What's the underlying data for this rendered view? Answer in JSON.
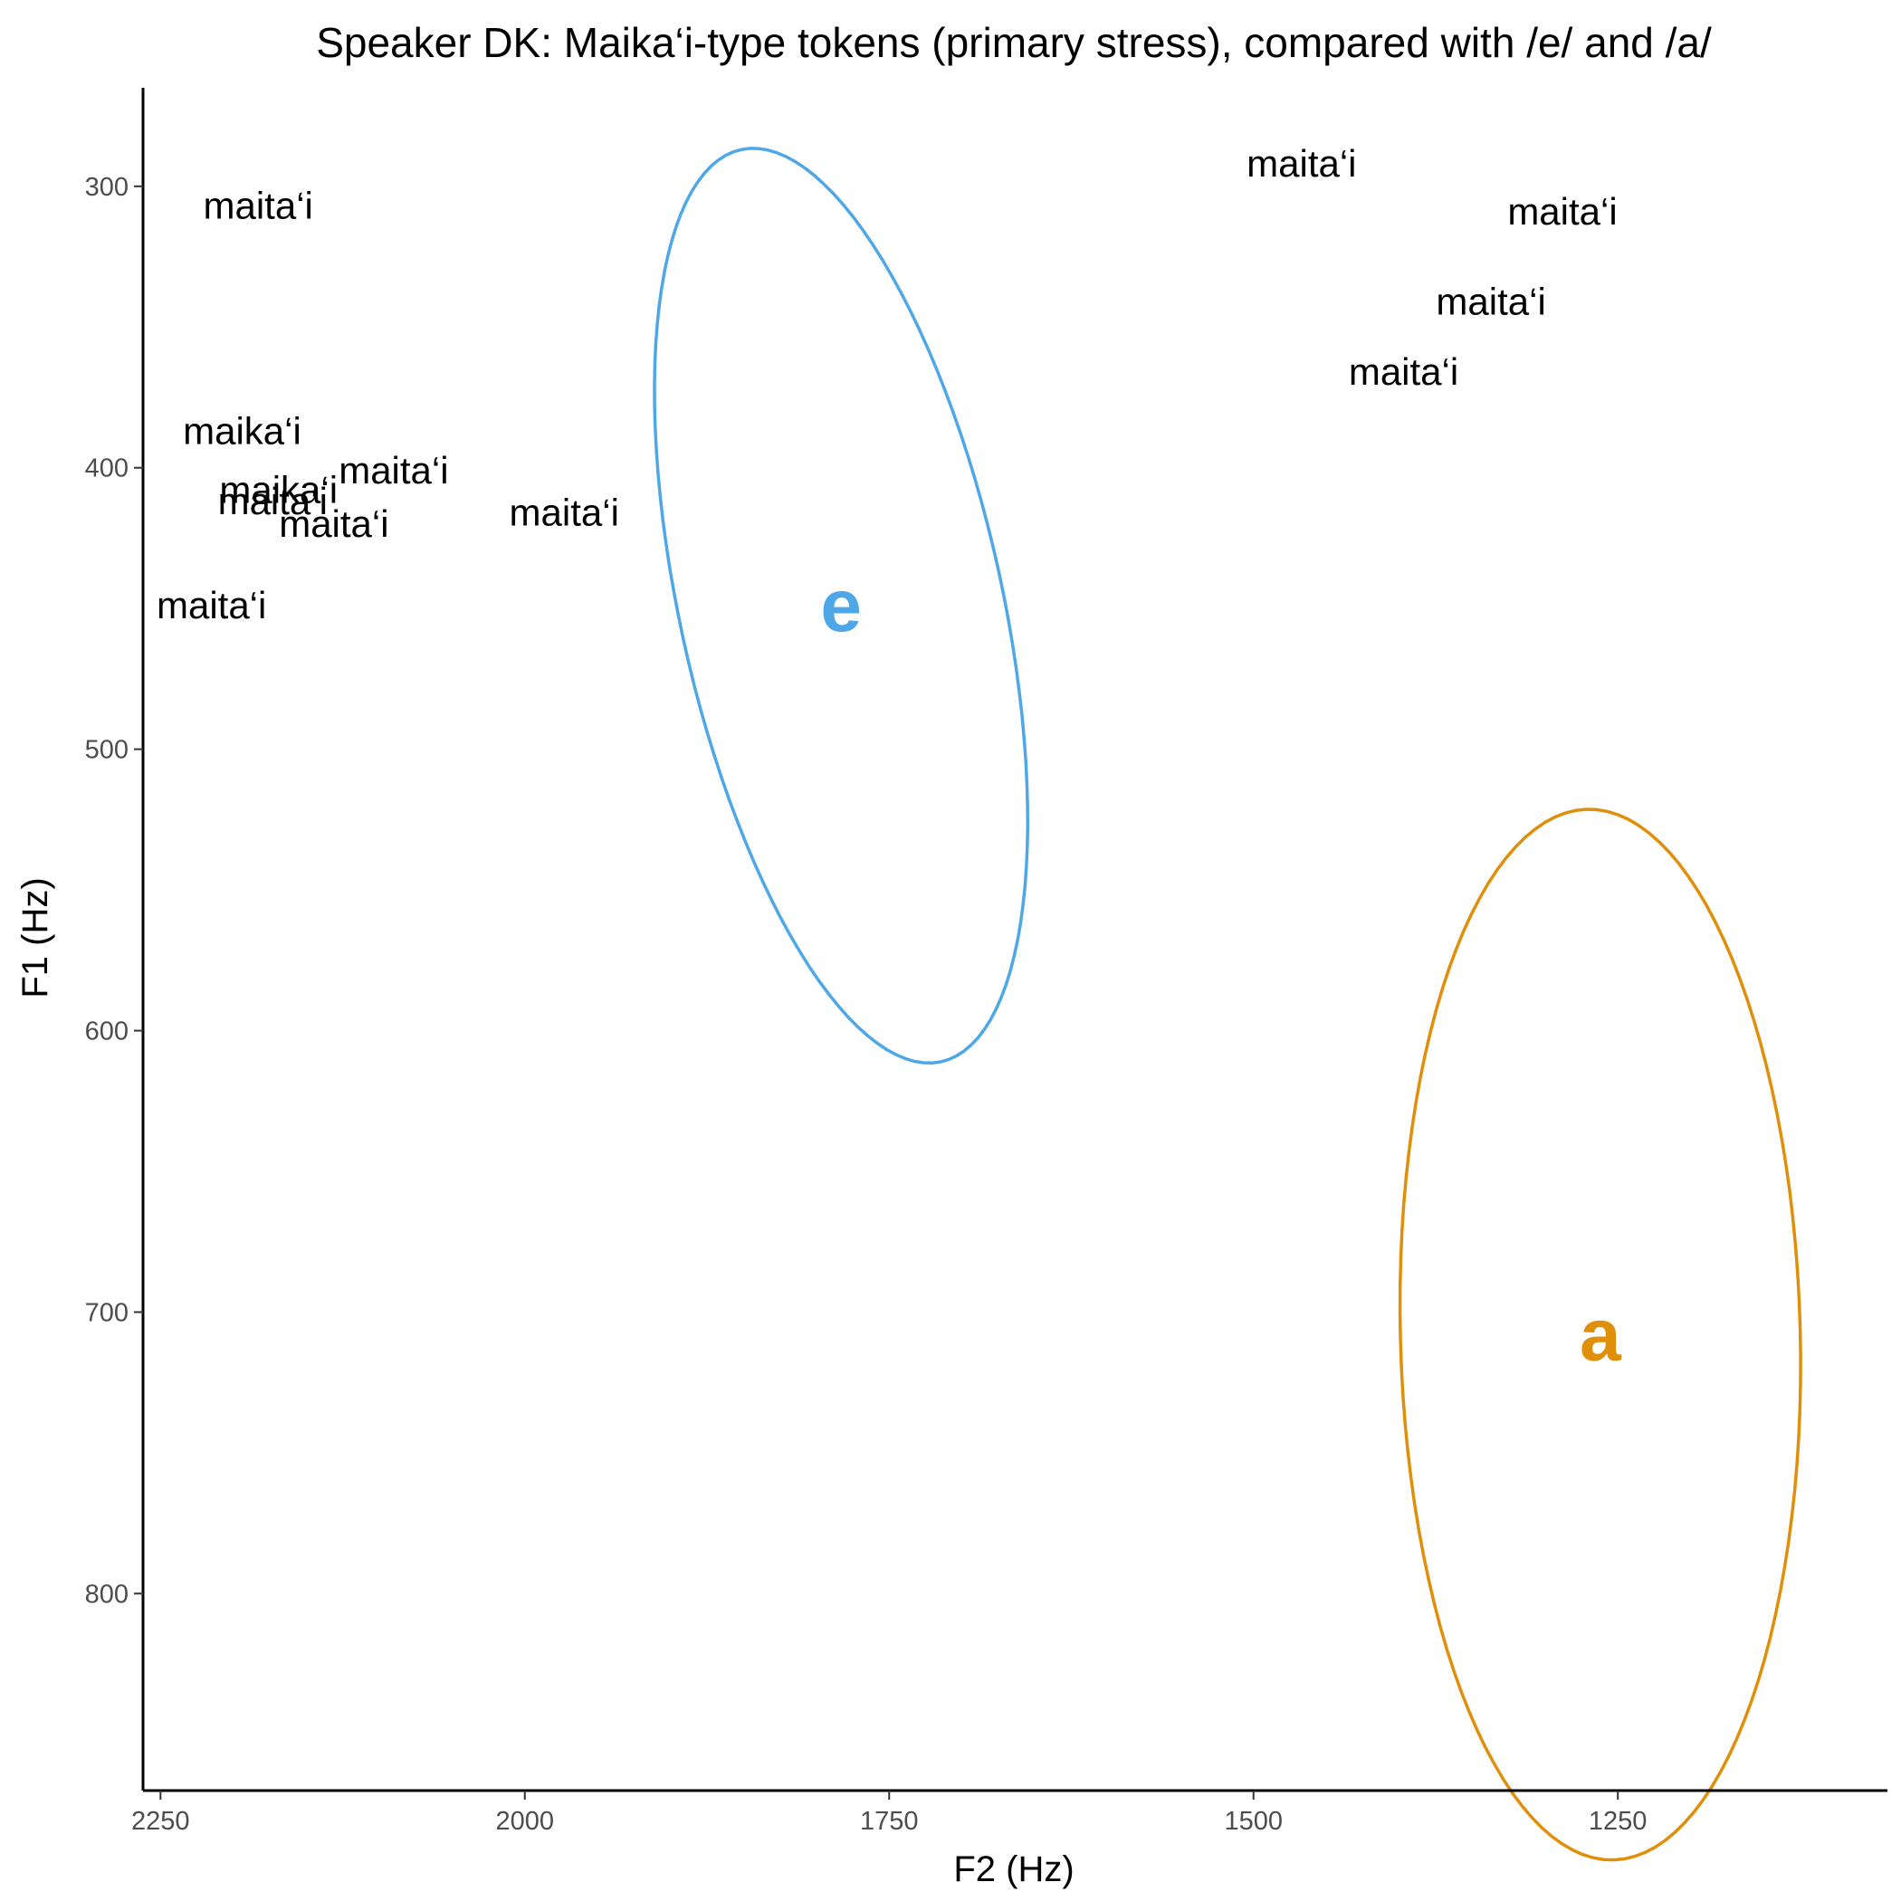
{
  "chart_data": {
    "type": "scatter",
    "title": "Speaker DK: Maika‘i-type tokens (primary stress), compared with /e/ and /a/",
    "xlabel": "F2 (Hz)",
    "ylabel": "F1 (Hz)",
    "x_reversed": true,
    "y_reversed": true,
    "xlim": [
      2262,
      1065
    ],
    "ylim": [
      265,
      870
    ],
    "x_ticks": [
      2250,
      2000,
      1750,
      1500,
      1250
    ],
    "y_ticks": [
      300,
      400,
      500,
      600,
      700,
      800
    ],
    "grid": false,
    "legend": "none",
    "points": [
      {
        "label": "maita‘i",
        "x": 2183,
        "y": 307
      },
      {
        "label": "maika‘i",
        "x": 2194,
        "y": 387
      },
      {
        "label": "maika‘i",
        "x": 2169,
        "y": 408
      },
      {
        "label": "maita‘i",
        "x": 2173,
        "y": 412
      },
      {
        "label": "maita‘i",
        "x": 2090,
        "y": 401
      },
      {
        "label": "maita‘i",
        "x": 2131,
        "y": 420
      },
      {
        "label": "maita‘i",
        "x": 2215,
        "y": 449
      },
      {
        "label": "maita‘i",
        "x": 1973,
        "y": 416
      },
      {
        "label": "maita‘i",
        "x": 1467,
        "y": 292
      },
      {
        "label": "maita‘i",
        "x": 1288,
        "y": 309
      },
      {
        "label": "maita‘i",
        "x": 1337,
        "y": 341
      },
      {
        "label": "maita‘i",
        "x": 1397,
        "y": 366
      }
    ],
    "ellipses": [
      {
        "label": "e",
        "color": "#4EA7E6",
        "cx": 1783,
        "cy": 449,
        "rx": 180,
        "ry": 102,
        "angle": 2.12
      },
      {
        "label": "a",
        "color": "#E08F0B",
        "cx": 1262,
        "cy": 708,
        "rx": 187,
        "ry": 137,
        "angle": 1.66
      }
    ]
  }
}
